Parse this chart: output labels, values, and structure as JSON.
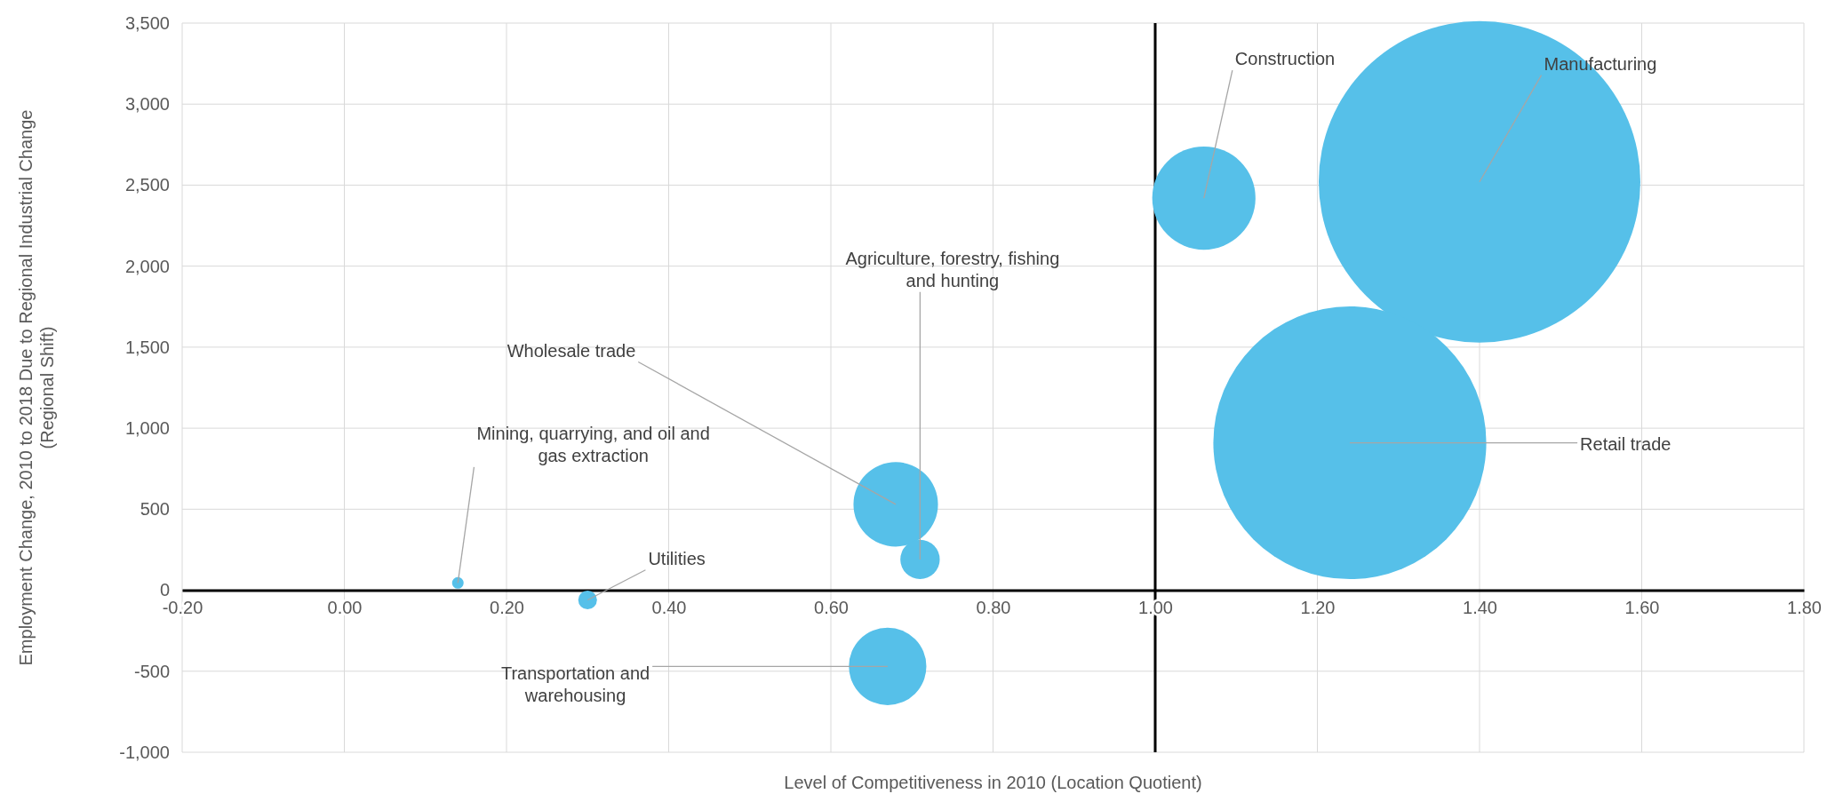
{
  "chart_data": {
    "type": "bubble",
    "xlabel": "Level of Competitiveness in 2010 (Location Quotient)",
    "ylabel": "Employment Change, 2010 to 2018 Due to Regional Industrial Change (Regional Shift)",
    "xlim": [
      -0.2,
      1.8
    ],
    "xticks": [
      {
        "value": -0.2,
        "label": "-0.20"
      },
      {
        "value": 0,
        "label": "0.00"
      },
      {
        "value": 0.2,
        "label": "0.20"
      },
      {
        "value": 0.4,
        "label": "0.40"
      },
      {
        "value": 0.6,
        "label": "0.60"
      },
      {
        "value": 0.8,
        "label": "0.80"
      },
      {
        "value": 1,
        "label": "1.00"
      },
      {
        "value": 1.2,
        "label": "1.20"
      },
      {
        "value": 1.4,
        "label": "1.40"
      },
      {
        "value": 1.6,
        "label": "1.60"
      },
      {
        "value": 1.8,
        "label": "1.80"
      }
    ],
    "ylim": [
      -1000,
      3500
    ],
    "yticks": [
      {
        "value": -1000,
        "label": "-1,000"
      },
      {
        "value": -500,
        "label": "-500"
      },
      0,
      500,
      {
        "value": 1000,
        "label": "1,000"
      },
      {
        "value": 1500,
        "label": "1,500"
      },
      {
        "value": 2000,
        "label": "2,000"
      },
      {
        "value": 2500,
        "label": "2,500"
      },
      {
        "value": 3000,
        "label": "3,000"
      },
      {
        "value": 3500,
        "label": "3,500"
      }
    ],
    "grid": true,
    "marker": "circle",
    "series": [
      {
        "color": "#56c0e9",
        "x": [
          0.14,
          0.3,
          0.68,
          0.71,
          0.67,
          1.06,
          1.4,
          1.24
        ],
        "values": [
          45,
          -60,
          530,
          190,
          -470,
          2420,
          2520,
          910
        ],
        "sizes": [
          0.0013,
          0.0034,
          0.069,
          0.015,
          0.058,
          0.103,
          1,
          0.72
        ]
      }
    ],
    "ref_lines": [
      {
        "axis": "x",
        "value": 1,
        "color": "#000000"
      }
    ],
    "annotations": [
      {
        "text": "Mining, quarrying, and oil and gas extraction",
        "x": 0.14,
        "y": 45
      },
      {
        "text": "Utilities",
        "x": 0.3,
        "y": -60
      },
      {
        "text": "Wholesale trade",
        "x": 0.68,
        "y": 530
      },
      {
        "text": "Agriculture, forestry, fishing and hunting",
        "x": 0.71,
        "y": 190
      },
      {
        "text": "Transportation and warehousing",
        "x": 0.67,
        "y": -470
      },
      {
        "text": "Construction",
        "x": 1.06,
        "y": 2420
      },
      {
        "text": "Manufacturing",
        "x": 1.4,
        "y": 2520
      },
      {
        "text": "Retail trade",
        "x": 1.24,
        "y": 910
      }
    ]
  }
}
